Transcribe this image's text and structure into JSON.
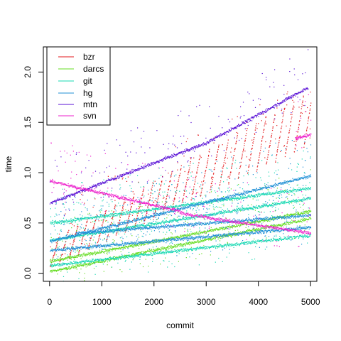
{
  "chart_data": {
    "type": "scatter",
    "title": "",
    "xlabel": "commit",
    "ylabel": "time",
    "xlim": [
      -120,
      5120
    ],
    "ylim": [
      -0.08,
      2.25
    ],
    "x_ticks": [
      0,
      1000,
      2000,
      3000,
      4000,
      5000
    ],
    "y_ticks": [
      0.0,
      0.5,
      1.0,
      1.5,
      2.0
    ],
    "x_tick_labels": [
      "0",
      "1000",
      "2000",
      "3000",
      "4000",
      "5000"
    ],
    "y_tick_labels": [
      "0.0",
      "0.5",
      "1.0",
      "1.5",
      "2.0"
    ],
    "grid": false,
    "legend_position": "top-left",
    "series": [
      {
        "name": "bzr",
        "color": "#e31a1c"
      },
      {
        "name": "darcs",
        "color": "#66dd22"
      },
      {
        "name": "git",
        "color": "#19d9b3"
      },
      {
        "name": "hg",
        "color": "#1f8fd6"
      },
      {
        "name": "mtn",
        "color": "#5a12d6"
      },
      {
        "name": "svn",
        "color": "#ee22cc"
      }
    ],
    "trend_segments": [
      {
        "series": "bzr",
        "segments": [
          [
            0,
            0.28,
            5000,
            1.5
          ]
        ],
        "style": "sawtooth",
        "period": 180,
        "amplitude": 0.45
      },
      {
        "series": "darcs",
        "segments": [
          [
            0,
            0.02,
            5000,
            0.55
          ],
          [
            0,
            0.12,
            5000,
            0.62
          ]
        ]
      },
      {
        "series": "git",
        "segments": [
          [
            0,
            0.08,
            5000,
            0.38
          ],
          [
            0,
            0.33,
            5000,
            0.75
          ],
          [
            0,
            0.5,
            5000,
            0.85
          ]
        ]
      },
      {
        "series": "hg",
        "segments": [
          [
            0,
            0.23,
            5000,
            0.46
          ],
          [
            0,
            0.32,
            5000,
            0.97
          ],
          [
            500,
            0.4,
            5000,
            0.58
          ]
        ]
      },
      {
        "series": "mtn",
        "segments": [
          [
            0,
            0.7,
            1000,
            0.9
          ],
          [
            1000,
            0.9,
            3000,
            1.3
          ],
          [
            3000,
            1.3,
            4950,
            1.85
          ]
        ]
      },
      {
        "series": "svn",
        "segments": [
          [
            0,
            0.92,
            2500,
            0.62
          ],
          [
            2500,
            0.6,
            5000,
            0.4
          ],
          [
            4700,
            1.34,
            5000,
            1.38
          ]
        ]
      }
    ]
  }
}
